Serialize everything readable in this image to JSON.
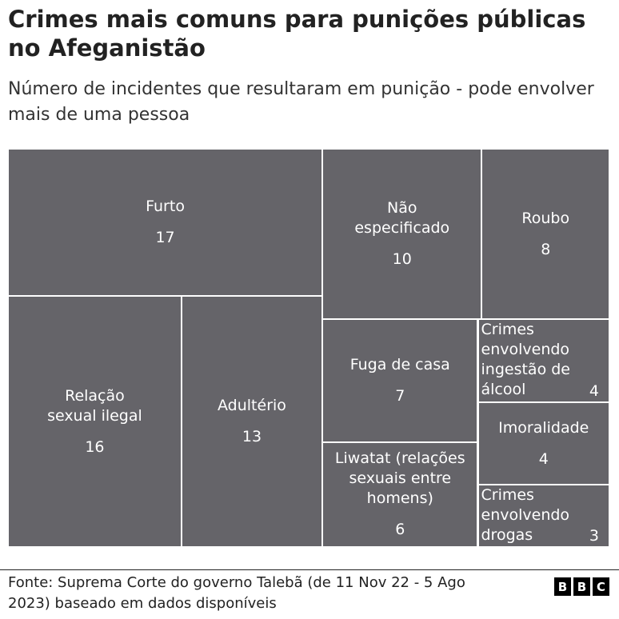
{
  "chart_data": {
    "type": "treemap",
    "title": "Crimes mais comuns para punições públicas no Afeganistão",
    "subtitle": "Número de incidentes que resultaram em punição - pode envolver mais de uma pessoa",
    "categories": [
      "Furto",
      "Relação sexual ilegal",
      "Adultério",
      "Não especificado",
      "Roubo",
      "Fuga de casa",
      "Liwatat (relações sexuais entre homens)",
      "Crimes envolvendo ingestão de álcool",
      "Imoralidade",
      "Crimes envolvendo drogas"
    ],
    "values": [
      17,
      16,
      13,
      10,
      8,
      7,
      6,
      4,
      4,
      3
    ],
    "color": "#656469",
    "source": "Fonte: Suprema Corte do governo Talebã (de 11 Nov 22 - 5 Ago 2023) baseado em dados disponíveis",
    "logo": [
      "B",
      "B",
      "C"
    ]
  }
}
